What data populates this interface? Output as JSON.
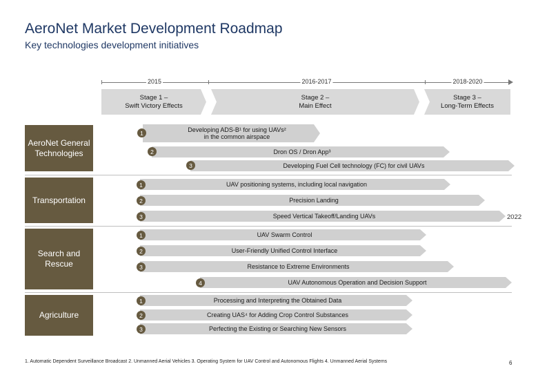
{
  "header": {
    "title": "AeroNet Market Development Roadmap",
    "subtitle": "Key technologies development initiatives"
  },
  "timeline": {
    "periods": [
      "2015",
      "2016-2017",
      "2018-2020"
    ],
    "stages": [
      {
        "line1": "Stage 1 –",
        "line2": "Swift Victory Effects"
      },
      {
        "line1": "Stage 2 –",
        "line2": "Main Effect"
      },
      {
        "line1": "Stage 3 –",
        "line2": "Long-Term Effects"
      }
    ]
  },
  "sections": [
    {
      "label_line1": "AeroNet General",
      "label_line2": "Technologies",
      "items": [
        {
          "num": "1",
          "text_line1": "Developing ADS-B¹ for using UAVs²",
          "text_line2": "in the common airspace"
        },
        {
          "num": "2",
          "text_line1": "Dron OS / Dron App³",
          "text_line2": ""
        },
        {
          "num": "3",
          "text_line1": "Developing Fuel Cell technology (FC) for civil UAVs",
          "text_line2": ""
        }
      ]
    },
    {
      "label_line1": "Transportation",
      "label_line2": "",
      "items": [
        {
          "num": "1",
          "text_line1": "UAV positioning systems, including local navigation",
          "text_line2": ""
        },
        {
          "num": "2",
          "text_line1": "Precision Landing",
          "text_line2": ""
        },
        {
          "num": "3",
          "text_line1": "Speed Vertical Takeoff/Landing UAVs",
          "text_line2": ""
        }
      ]
    },
    {
      "label_line1": "Search and",
      "label_line2": "Rescue",
      "items": [
        {
          "num": "1",
          "text_line1": "UAV Swarm Control",
          "text_line2": ""
        },
        {
          "num": "2",
          "text_line1": "User-Friendly Unified Control Interface",
          "text_line2": ""
        },
        {
          "num": "3",
          "text_line1": "Resistance to Extreme Environments",
          "text_line2": ""
        },
        {
          "num": "4",
          "text_line1": "UAV Autonomous Operation and Decision Support",
          "text_line2": ""
        }
      ]
    },
    {
      "label_line1": "Agriculture",
      "label_line2": "",
      "items": [
        {
          "num": "1",
          "text_line1": "Processing and Interpreting the Obtained Data",
          "text_line2": ""
        },
        {
          "num": "2",
          "text_line1": "Creating UAS⁴ for Adding Crop Control Substances",
          "text_line2": ""
        },
        {
          "num": "3",
          "text_line1": "Perfecting the Existing or Searching New Sensors",
          "text_line2": ""
        }
      ]
    }
  ],
  "year_2022": "2022",
  "footnote": "1. Automatic Dependent Surveillance Broadcast 2. Unmanned Aerial Vehicles 3. Operating System for UAV Control and Autonomous Flights 4. Unmanned Aerial Systems",
  "page_number": "6",
  "colors": {
    "accent": "#665a40",
    "bar": "#d0d0d0",
    "stage": "#d9d9d9",
    "title": "#1f3864"
  }
}
